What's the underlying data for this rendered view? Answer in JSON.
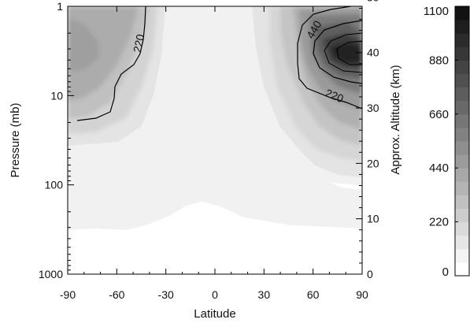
{
  "chart_data": {
    "type": "heatmap",
    "title": "",
    "xlabel": "Latitude",
    "ylabel": "Pressure (mb)",
    "ylabel_right": "Approx. Altitude (km)",
    "x_ticks": [
      "-90",
      "-60",
      "-30",
      "0",
      "30",
      "60",
      "90"
    ],
    "x_tick_values": [
      -90,
      -60,
      -30,
      0,
      30,
      60,
      90
    ],
    "xlim": [
      -90,
      90
    ],
    "y_ticks": [
      "1",
      "10",
      "100",
      "1000"
    ],
    "y_tick_values": [
      1,
      10,
      100,
      1000
    ],
    "ylim": [
      1000,
      1
    ],
    "y_scale": "log",
    "altitude_ticks": [
      "0",
      "10",
      "20",
      "30",
      "40",
      "50"
    ],
    "altitude_tick_values": [
      0,
      10,
      20,
      30,
      40,
      50
    ],
    "colorbar": {
      "ticks": [
        "0",
        "220",
        "440",
        "660",
        "880",
        "1100"
      ],
      "tick_values": [
        0,
        220,
        440,
        660,
        880,
        1100
      ],
      "range": [
        0,
        1100
      ],
      "levels": 20
    },
    "contour_labels": [
      "220",
      "440",
      "220"
    ],
    "grid": false
  }
}
